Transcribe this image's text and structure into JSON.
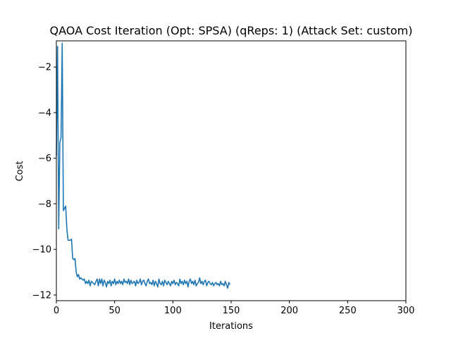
{
  "chart_data": {
    "type": "line",
    "title": "QAOA Cost Iteration (Opt: SPSA) (qReps: 1) (Attack Set: custom)",
    "xlabel": "Iterations",
    "ylabel": "Cost",
    "xlim": [
      0,
      300
    ],
    "ylim": [
      -12.25,
      -0.85
    ],
    "xticks": [
      0,
      50,
      100,
      150,
      200,
      250,
      300
    ],
    "yticks": [
      -12,
      -10,
      -8,
      -6,
      -4,
      -2
    ],
    "grid": false,
    "line_color": "#1f77b4",
    "series": [
      {
        "x": [
          0,
          1,
          2,
          3,
          4,
          5,
          6,
          7,
          8,
          9,
          10,
          11,
          12,
          13,
          14,
          15,
          16,
          17,
          18,
          19,
          20,
          21,
          22,
          23,
          24,
          25,
          26,
          27,
          28,
          29,
          30,
          31,
          32,
          33,
          34,
          35,
          36,
          37,
          38,
          39,
          40,
          41,
          42,
          43,
          44,
          45,
          46,
          47,
          48,
          49,
          50,
          51,
          52,
          53,
          54,
          55,
          56,
          57,
          58,
          59,
          60,
          61,
          62,
          63,
          64,
          65,
          66,
          67,
          68,
          69,
          70,
          71,
          72,
          73,
          74,
          75,
          76,
          77,
          78,
          79,
          80,
          81,
          82,
          83,
          84,
          85,
          86,
          87,
          88,
          89,
          90,
          91,
          92,
          93,
          94,
          95,
          96,
          97,
          98,
          99,
          100,
          101,
          102,
          103,
          104,
          105,
          106,
          107,
          108,
          109,
          110,
          111,
          112,
          113,
          114,
          115,
          116,
          117,
          118,
          119,
          120,
          121,
          122,
          123,
          124,
          125,
          126,
          127,
          128,
          129,
          130,
          131,
          132,
          133,
          134,
          135,
          136,
          137,
          138,
          139,
          140,
          141,
          142,
          143,
          144,
          145,
          146,
          147,
          148,
          149
        ],
        "y": [
          -5.9,
          -1.1,
          -9.1,
          -5.3,
          -5.1,
          -0.95,
          -8.3,
          -8.2,
          -8.1,
          -9.1,
          -9.6,
          -9.6,
          -9.6,
          -9.55,
          -10.4,
          -10.45,
          -10.4,
          -11.0,
          -11.2,
          -11.1,
          -11.3,
          -11.25,
          -11.3,
          -11.35,
          -11.3,
          -11.5,
          -11.4,
          -11.5,
          -11.35,
          -11.6,
          -11.4,
          -11.45,
          -11.5,
          -11.55,
          -11.4,
          -11.3,
          -11.6,
          -11.3,
          -11.5,
          -11.3,
          -11.6,
          -11.35,
          -11.45,
          -11.65,
          -11.4,
          -11.5,
          -11.35,
          -11.6,
          -11.4,
          -11.5,
          -11.3,
          -11.55,
          -11.4,
          -11.5,
          -11.35,
          -11.5,
          -11.4,
          -11.55,
          -11.3,
          -11.45,
          -11.4,
          -11.5,
          -11.3,
          -11.55,
          -11.35,
          -11.5,
          -11.45,
          -11.4,
          -11.6,
          -11.35,
          -11.5,
          -11.45,
          -11.3,
          -11.55,
          -11.4,
          -11.35,
          -11.5,
          -11.6,
          -11.4,
          -11.3,
          -11.5,
          -11.45,
          -11.55,
          -11.35,
          -11.6,
          -11.4,
          -11.5,
          -11.65,
          -11.3,
          -11.5,
          -11.55,
          -11.4,
          -11.6,
          -11.35,
          -11.45,
          -11.55,
          -11.4,
          -11.5,
          -11.6,
          -11.4,
          -11.5,
          -11.35,
          -11.55,
          -11.45,
          -11.5,
          -11.6,
          -11.3,
          -11.5,
          -11.4,
          -11.55,
          -11.35,
          -11.5,
          -11.4,
          -11.65,
          -11.4,
          -11.3,
          -11.5,
          -11.4,
          -11.55,
          -11.35,
          -11.6,
          -11.5,
          -11.45,
          -11.25,
          -11.5,
          -11.4,
          -11.55,
          -11.4,
          -11.35,
          -11.6,
          -11.45,
          -11.4,
          -11.5,
          -11.55,
          -11.45,
          -11.6,
          -11.5,
          -11.45,
          -11.55,
          -11.5,
          -11.6,
          -11.4,
          -11.55,
          -11.5,
          -11.6,
          -11.4,
          -11.55,
          -11.7,
          -11.45,
          -11.55
        ]
      }
    ]
  }
}
